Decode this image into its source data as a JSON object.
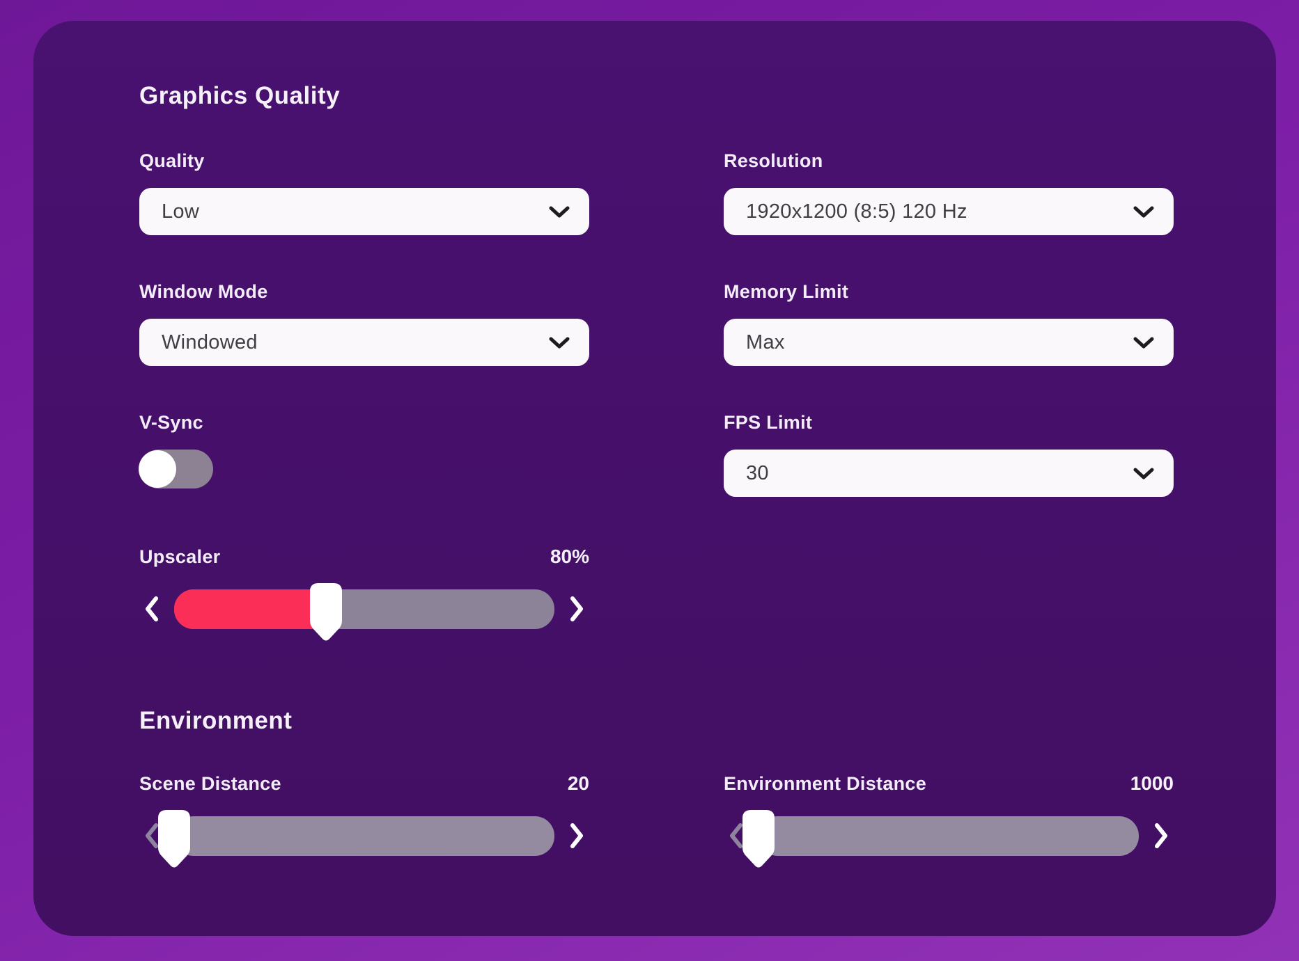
{
  "colors": {
    "accent-red": "#fa2e57",
    "panel-bg": "#451069",
    "page-bg-top": "#6e1797",
    "page-bg-bottom": "#9132b6",
    "track-gray": "#8d8398",
    "toggle-off": "#8c8294",
    "field-bg": "#faf8fb",
    "field-text": "#413d45"
  },
  "graphics": {
    "title": "Graphics Quality",
    "quality": {
      "label": "Quality",
      "value": "Low"
    },
    "resolution": {
      "label": "Resolution",
      "value": "1920x1200 (8:5) 120 Hz"
    },
    "window_mode": {
      "label": "Window Mode",
      "value": "Windowed"
    },
    "memory_limit": {
      "label": "Memory Limit",
      "value": "Max"
    },
    "vsync": {
      "label": "V-Sync",
      "enabled": false
    },
    "fps_limit": {
      "label": "FPS Limit",
      "value": "30"
    },
    "upscaler": {
      "label": "Upscaler",
      "value": "80%",
      "thumb_percent": 40
    }
  },
  "environment": {
    "title": "Environment",
    "scene_distance": {
      "label": "Scene Distance",
      "value": "20",
      "thumb_percent": 0
    },
    "environment_distance": {
      "label": "Environment Distance",
      "value": "1000",
      "thumb_percent": 0
    }
  }
}
